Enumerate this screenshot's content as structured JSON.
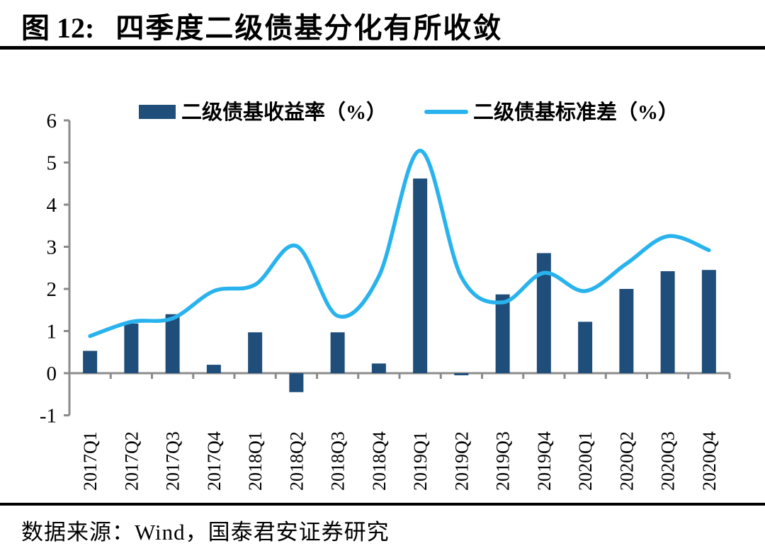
{
  "figure": {
    "number_label": "图 12:",
    "title": "四季度二级债基分化有所收敛"
  },
  "source": {
    "label": "数据来源：Wind，国泰君安证券研究"
  },
  "colors": {
    "bar": "#1F4E7B",
    "line": "#29B3EE",
    "axis": "#8B8B8B",
    "text": "#000000",
    "background": "#FFFFFF"
  },
  "chart_data": {
    "type": "bar",
    "subtype": "bar+smooth-line combo",
    "categories": [
      "2017Q1",
      "2017Q2",
      "2017Q3",
      "2017Q4",
      "2018Q1",
      "2018Q2",
      "2018Q3",
      "2018Q4",
      "2019Q1",
      "2019Q2",
      "2019Q3",
      "2019Q4",
      "2020Q1",
      "2020Q2",
      "2020Q3",
      "2020Q4"
    ],
    "series": [
      {
        "name": "二级债基收益率（%）",
        "type": "bar",
        "color": "#1F4E7B",
        "values": [
          0.53,
          1.18,
          1.4,
          0.2,
          0.97,
          -0.45,
          0.97,
          0.23,
          4.62,
          -0.05,
          1.87,
          2.85,
          1.22,
          2.0,
          2.42,
          2.45
        ]
      },
      {
        "name": "二级债基标准差（%）",
        "type": "line",
        "color": "#29B3EE",
        "values": [
          0.88,
          1.22,
          1.3,
          1.95,
          2.1,
          3.02,
          1.36,
          2.3,
          5.28,
          2.28,
          1.68,
          2.38,
          1.95,
          2.6,
          3.25,
          2.92
        ]
      }
    ],
    "ylim": [
      -1,
      6
    ],
    "yticks": [
      -1,
      0,
      1,
      2,
      3,
      4,
      5,
      6
    ],
    "xlabel": "",
    "ylabel": "",
    "grid": false,
    "legend_position": "top-center",
    "x_labels_rotation_deg": 90
  }
}
